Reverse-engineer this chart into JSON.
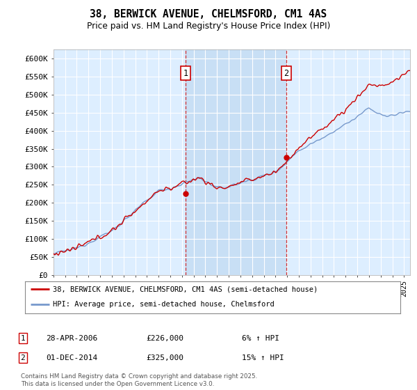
{
  "title": "38, BERWICK AVENUE, CHELMSFORD, CM1 4AS",
  "subtitle": "Price paid vs. HM Land Registry's House Price Index (HPI)",
  "ylim": [
    0,
    625000
  ],
  "yticks": [
    0,
    50000,
    100000,
    150000,
    200000,
    250000,
    300000,
    350000,
    400000,
    450000,
    500000,
    550000,
    600000
  ],
  "ytick_labels": [
    "£0",
    "£50K",
    "£100K",
    "£150K",
    "£200K",
    "£250K",
    "£300K",
    "£350K",
    "£400K",
    "£450K",
    "£500K",
    "£550K",
    "£600K"
  ],
  "background_color": "#ffffff",
  "plot_bg_color": "#ddeeff",
  "shade_bg_color": "#c8dff5",
  "grid_color": "#ffffff",
  "line1_color": "#cc0000",
  "line2_color": "#7799cc",
  "annotation1_date": "28-APR-2006",
  "annotation1_price": 226000,
  "annotation1_hpi": "6% ↑ HPI",
  "annotation2_date": "01-DEC-2014",
  "annotation2_price": 325000,
  "annotation2_hpi": "15% ↑ HPI",
  "legend_label1": "38, BERWICK AVENUE, CHELMSFORD, CM1 4AS (semi-detached house)",
  "legend_label2": "HPI: Average price, semi-detached house, Chelmsford",
  "footnote": "Contains HM Land Registry data © Crown copyright and database right 2025.\nThis data is licensed under the Open Government Licence v3.0.",
  "sale1_x": 2006.33,
  "sale1_y": 226000,
  "sale2_x": 2014.92,
  "sale2_y": 325000,
  "xmin": 1995,
  "xmax": 2025.5
}
